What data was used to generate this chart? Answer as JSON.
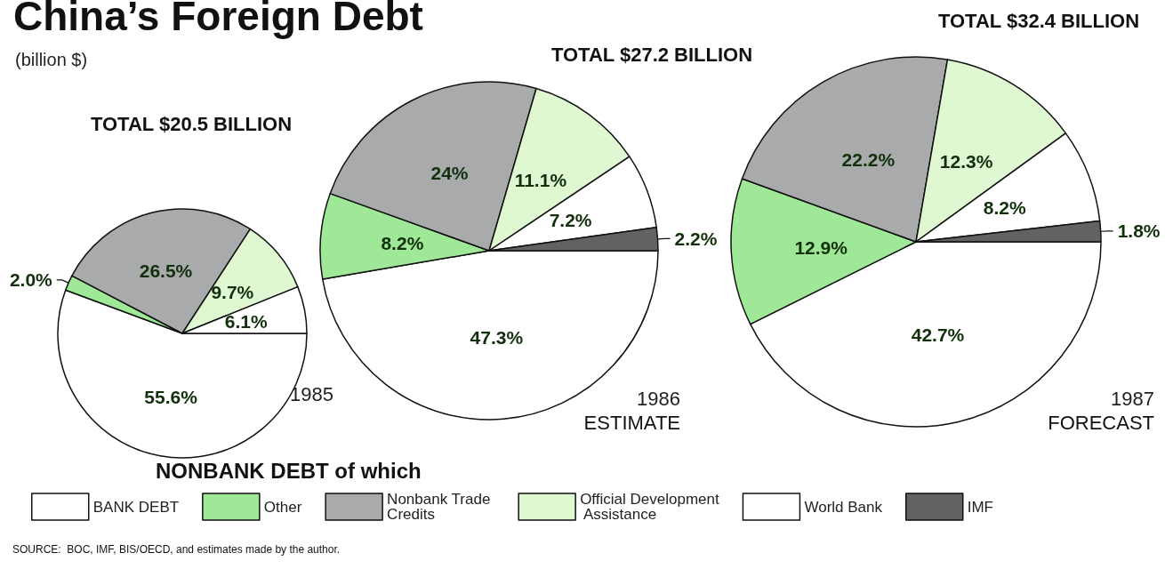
{
  "chart_data": {
    "type": "pie",
    "title": "China’s Foreign Debt",
    "subtitle": "(billion $)",
    "categories": [
      "BANK DEBT",
      "Other",
      "Nonbank Trade Credits",
      "Official Development Assistance",
      "World Bank",
      "IMF"
    ],
    "colors": [
      "#ffffff",
      "#9fe897",
      "#a9aaac",
      "#e0f8d2",
      "#ffffff",
      "#606264"
    ],
    "series": [
      {
        "name": "1985",
        "values": [
          55.6,
          2.0,
          26.5,
          9.7,
          6.1,
          null
        ],
        "value_labels": [
          "55.6%",
          "2.0%",
          "26.5%",
          "9.7%",
          "6.1%",
          null
        ]
      },
      {
        "name": "1986",
        "values": [
          47.3,
          8.2,
          24,
          11.1,
          7.2,
          2.2
        ],
        "value_labels": [
          "47.3%",
          "8.2%",
          "24%",
          "11.1%",
          "7.2%",
          "2.2%"
        ]
      },
      {
        "name": "1987",
        "values": [
          42.7,
          12.9,
          22.2,
          12.3,
          8.2,
          1.8
        ],
        "value_labels": [
          "42.7%",
          "12.9%",
          "22.2%",
          "12.3%",
          "8.2%",
          "1.8%"
        ]
      }
    ],
    "annotations": [
      "TOTAL $20.5 BILLION",
      "TOTAL $27.2 BILLION",
      "TOTAL $32.4 BILLION",
      "ESTIMATE",
      "FORECAST",
      "NONBANK DEBT of which",
      "SOURCE:  BOC, IMF, BIS/OECD, and estimates made by the author."
    ],
    "legend": "bottom"
  }
}
